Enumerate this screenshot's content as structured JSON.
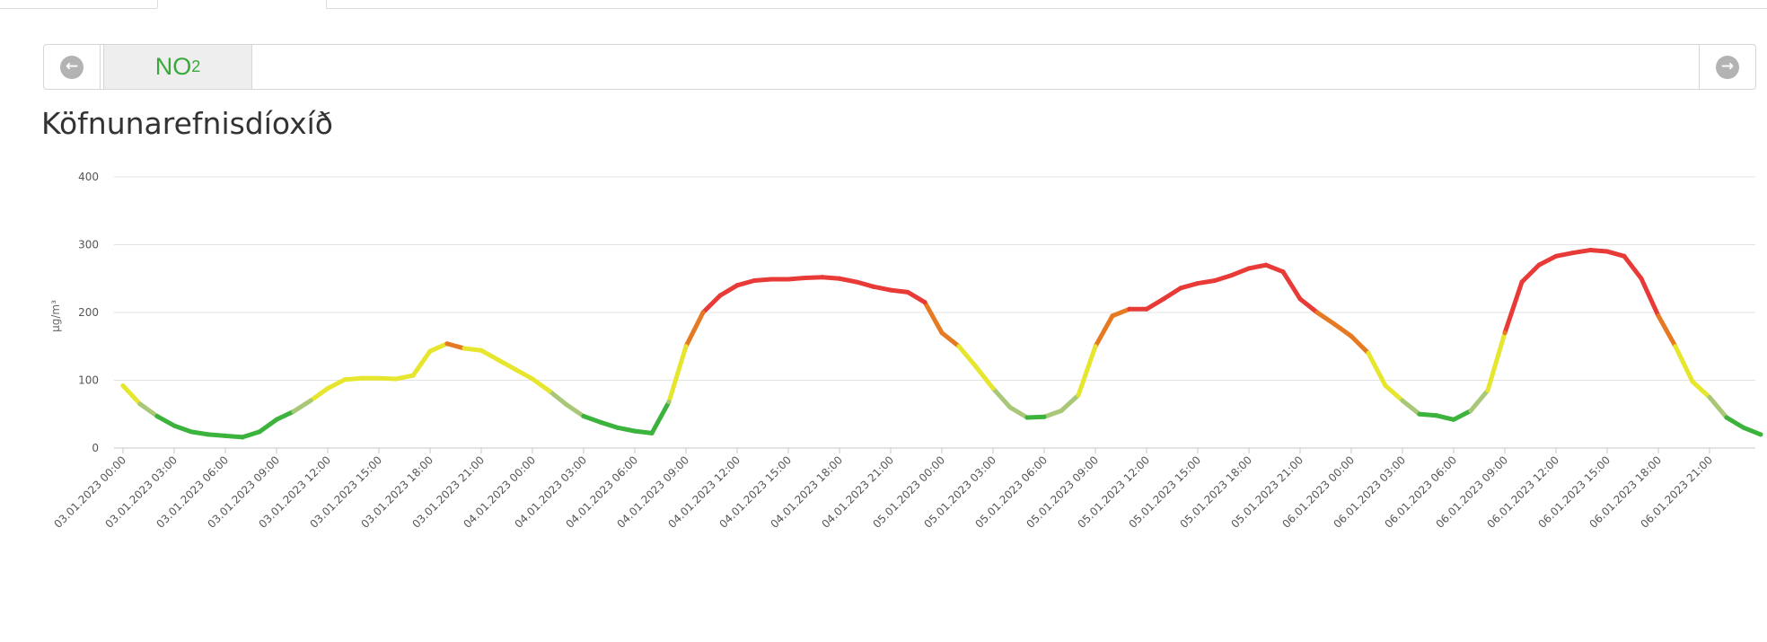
{
  "pollutant_selector": {
    "selected_label": "NO",
    "selected_subscript": "2",
    "prev_icon": "arrow-left-circle-icon",
    "next_icon": "arrow-right-circle-icon",
    "accent_color": "#3aa83a"
  },
  "chart_data": {
    "type": "line",
    "title": "Köfnunarefnisdíoxíð",
    "ylabel": "µg/m³",
    "xlabel": "",
    "ylim": [
      0,
      400
    ],
    "yticks": [
      0,
      100,
      200,
      300,
      400
    ],
    "grid": true,
    "start_time": "03.01.2023 00:00",
    "interval_hours": 1,
    "x_tick_labels": [
      "03.01.2023 00:00",
      "03.01.2023 03:00",
      "03.01.2023 06:00",
      "03.01.2023 09:00",
      "03.01.2023 12:00",
      "03.01.2023 15:00",
      "03.01.2023 18:00",
      "03.01.2023 21:00",
      "04.01.2023 00:00",
      "04.01.2023 03:00",
      "04.01.2023 06:00",
      "04.01.2023 09:00",
      "04.01.2023 12:00",
      "04.01.2023 15:00",
      "04.01.2023 18:00",
      "04.01.2023 21:00",
      "05.01.2023 00:00",
      "05.01.2023 03:00",
      "05.01.2023 06:00",
      "05.01.2023 09:00",
      "05.01.2023 12:00",
      "05.01.2023 15:00",
      "05.01.2023 18:00",
      "05.01.2023 21:00",
      "06.01.2023 00:00",
      "06.01.2023 03:00",
      "06.01.2023 06:00",
      "06.01.2023 09:00",
      "06.01.2023 12:00",
      "06.01.2023 15:00",
      "06.01.2023 18:00",
      "06.01.2023 21:00"
    ],
    "series": [
      {
        "name": "NO2",
        "values": [
          92,
          65,
          47,
          33,
          24,
          20,
          18,
          16,
          24,
          42,
          54,
          70,
          88,
          101,
          103,
          103,
          102,
          107,
          143,
          154,
          147,
          144,
          130,
          116,
          102,
          84,
          64,
          47,
          38,
          30,
          25,
          22,
          68,
          150,
          200,
          225,
          240,
          247,
          249,
          249,
          251,
          252,
          250,
          245,
          238,
          233,
          230,
          215,
          170,
          150,
          120,
          88,
          60,
          45,
          46,
          55,
          78,
          150,
          195,
          205,
          205,
          220,
          236,
          243,
          247,
          255,
          265,
          270,
          260,
          220,
          200,
          183,
          165,
          140,
          92,
          70,
          50,
          48,
          42,
          55,
          85,
          170,
          245,
          270,
          283,
          288,
          292,
          290,
          283,
          250,
          195,
          150,
          98,
          75,
          45,
          30,
          20
        ]
      }
    ],
    "color_bands": [
      {
        "max": 50,
        "color": "#3cb33c"
      },
      {
        "max": 75,
        "color": "#a8c878"
      },
      {
        "max": 150,
        "color": "#e6e62e"
      },
      {
        "max": 200,
        "color": "#e67a22"
      },
      {
        "max": 400,
        "color": "#e83a36"
      }
    ]
  }
}
